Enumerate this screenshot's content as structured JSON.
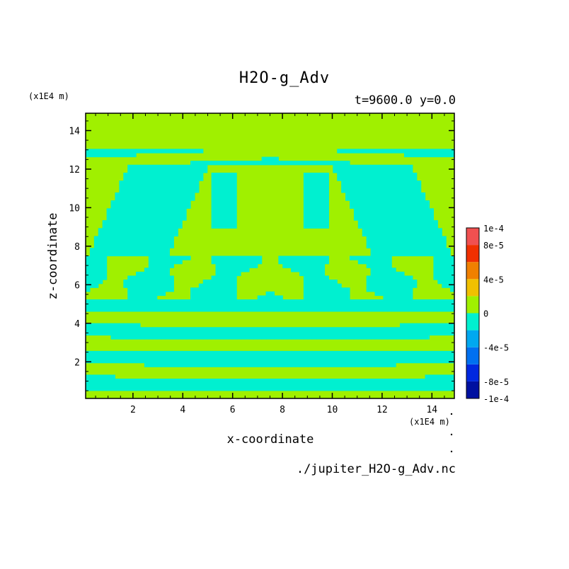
{
  "chart_data": {
    "type": "heatmap",
    "title": "H2O-g_Adv",
    "subtitle": "t=9600.0 y=0.0",
    "xlabel": "x-coordinate",
    "ylabel": "z-coordinate",
    "x_unit": "(x1E4 m)",
    "y_unit": "(x1E4 m)",
    "xlim": [
      0.1,
      14.9
    ],
    "ylim": [
      0.1,
      14.9
    ],
    "x_ticks": [
      2,
      4,
      6,
      8,
      10,
      12,
      14
    ],
    "y_ticks": [
      2,
      4,
      6,
      8,
      10,
      12,
      14
    ],
    "colorbar": {
      "levels": [
        -0.0001,
        -8e-05,
        -6e-05,
        -4e-05,
        -2e-05,
        0,
        2e-05,
        4e-05,
        6e-05,
        8e-05,
        0.0001
      ],
      "labels": [
        "1e-4",
        "8e-5",
        "4e-5",
        "0",
        "-4e-5",
        "-8e-5",
        "-1e-4"
      ],
      "label_values": [
        0.0001,
        8e-05,
        4e-05,
        0,
        -4e-05,
        -8e-05,
        -0.0001
      ],
      "colors": [
        "#0010a0",
        "#0028e0",
        "#0070f0",
        "#00a8f0",
        "#00f0d0",
        "#a0f000",
        "#f0c000",
        "#f08000",
        "#f03000",
        "#f05050"
      ]
    },
    "field_note": "",
    "pattern_colors": {
      "positive": "#a0f000",
      "negative": "#00f0d0"
    },
    "source_file": "./jupiter_H2O-g_Adv.nc"
  }
}
